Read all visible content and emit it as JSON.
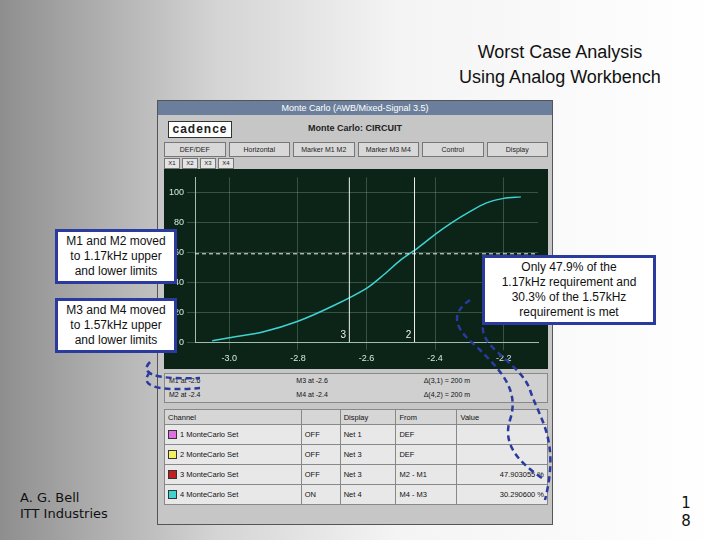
{
  "slide": {
    "title_lines": [
      "Worst Case Analysis",
      "Using Analog Workbench"
    ],
    "author": "A. G. Bell",
    "company": "ITT Industries",
    "page": "18"
  },
  "window": {
    "title": "Monte Carlo (AWB/Mixed-Signal 3.5)",
    "logo": "cadence",
    "heading": "Monte Carlo: CIRCUIT",
    "buttons": [
      "DEF/DEF",
      "Horizontal",
      "Marker M1 M2",
      "Marker M3 M4",
      "Control",
      "Display"
    ],
    "tabs": [
      "X1",
      "X2",
      "X3",
      "X4"
    ]
  },
  "chart_data": {
    "type": "line",
    "color": "#3fd2d2",
    "grid": true,
    "x": [
      -3.05,
      -3.0,
      -2.9,
      -2.8,
      -2.7,
      -2.6,
      -2.55,
      -2.5,
      -2.45,
      -2.4,
      -2.35,
      -2.3,
      -2.25,
      -2.2,
      -2.15
    ],
    "values": [
      1,
      3,
      7,
      14,
      24,
      36,
      45,
      55,
      63,
      72,
      80,
      87,
      93,
      96,
      97
    ],
    "xlim": [
      -3.1,
      -2.1
    ],
    "xticks": [
      {
        "value": -3.0,
        "label": "-3.0"
      },
      {
        "value": -2.8,
        "label": "-2.8"
      },
      {
        "value": -2.6,
        "label": "-2.6"
      },
      {
        "value": -2.4,
        "label": "-2.4"
      },
      {
        "value": -2.2,
        "label": "-2.2"
      }
    ],
    "ylim": [
      0,
      110
    ],
    "yticks": [
      0,
      20,
      40,
      60,
      80,
      100
    ],
    "cursors": [
      {
        "label": "3",
        "x": -2.65
      },
      {
        "label": "2",
        "x": -2.46
      }
    ],
    "hline": 59
  },
  "readouts": [
    [
      "M1 at -2.6",
      "M3 at -2.6",
      "Δ(3,1) = 200 m"
    ],
    [
      "M2 at -2.4",
      "M4 at -2.4",
      "Δ(4,2) = 200 m"
    ]
  ],
  "table": {
    "headers": [
      "Channel",
      "Display",
      "From",
      "Value"
    ],
    "rows": [
      {
        "channel": "1 MonteCarlo Set",
        "color": "#e070e0",
        "state": "OFF",
        "display": "Net 1",
        "from": "DEF",
        "value": null
      },
      {
        "channel": "2 MonteCarlo Set",
        "color": "#f0f060",
        "state": "OFF",
        "display": "Net 3",
        "from": "DEF",
        "value": null
      },
      {
        "channel": "3 MonteCarlo Set",
        "color": "#c02020",
        "state": "OFF",
        "display": "Net 3",
        "from": "M2 - M1",
        "value": "47.903055 %"
      },
      {
        "channel": "4 MonteCarlo Set",
        "color": "#3fd2d2",
        "state": "ON",
        "display": "Net 4",
        "from": "M4 - M3",
        "value": "30.290600 %"
      }
    ]
  },
  "callouts": {
    "left": [
      [
        "M1 and M2 moved",
        "to 1.17kHz upper",
        "and lower limits"
      ],
      [
        "M3 and M4 moved",
        "to 1.57kHz upper",
        "and lower limits"
      ]
    ],
    "right": [
      "Only 47.9% of the",
      "1.17kHz requirement and",
      "30.3% of the 1.57kHz",
      "requirement is met"
    ]
  }
}
